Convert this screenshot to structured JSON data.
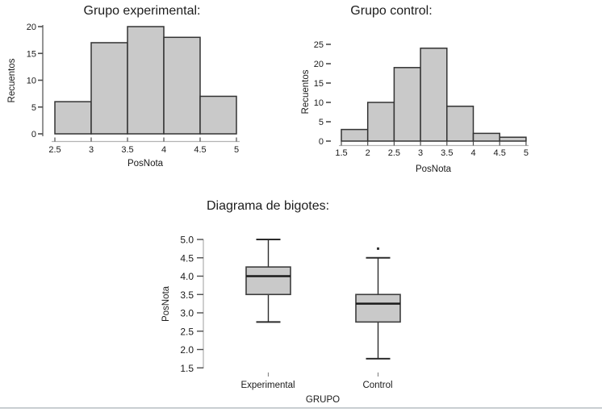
{
  "page": {
    "background": "#ffffff",
    "bottom_rule_color": "#c9ced2",
    "bar_fill": "#c9c9c9",
    "bar_stroke": "#333333",
    "axis_line_color": "#b3b3b3",
    "tick_color": "#4d4d4d",
    "text_color": "#1a1a1a"
  },
  "chart_data": [
    {
      "type": "bar",
      "subtype": "histogram",
      "title": "Grupo experimental:",
      "xlabel": "PosNota",
      "ylabel": "Recuentos",
      "bin_edges": [
        2.5,
        3,
        3.5,
        4,
        4.5,
        5
      ],
      "counts": [
        6,
        17,
        20,
        18,
        7
      ],
      "x_ticks": [
        2.5,
        3,
        3.5,
        4,
        4.5,
        5
      ],
      "x_tick_labels": [
        "2.5",
        "3",
        "3.5",
        "4",
        "4.5",
        "5"
      ],
      "y_ticks": [
        0,
        5,
        10,
        15,
        20
      ],
      "y_tick_labels": [
        "0",
        "5",
        "10",
        "15",
        "20"
      ],
      "xlim": [
        2.5,
        5
      ],
      "ylim": [
        0,
        20
      ],
      "grid": false,
      "legend": false
    },
    {
      "type": "bar",
      "subtype": "histogram",
      "title": "Grupo control:",
      "xlabel": "PosNota",
      "ylabel": "Recuentos",
      "bin_edges": [
        1.5,
        2,
        2.5,
        3,
        3.5,
        4,
        4.5,
        5
      ],
      "counts": [
        3,
        10,
        19,
        24,
        9,
        2,
        1
      ],
      "x_ticks": [
        1.5,
        2,
        2.5,
        3,
        3.5,
        4,
        4.5,
        5
      ],
      "x_tick_labels": [
        "1.5",
        "2",
        "2.5",
        "3",
        "3.5",
        "4",
        "4.5",
        "5"
      ],
      "y_ticks": [
        0,
        5,
        10,
        15,
        20,
        25
      ],
      "y_tick_labels": [
        "0",
        "5",
        "10",
        "15",
        "20",
        "25"
      ],
      "xlim": [
        1.5,
        5
      ],
      "ylim": [
        0,
        25
      ],
      "grid": false,
      "legend": false
    },
    {
      "type": "boxplot",
      "title": "Diagrama de bigotes:",
      "xlabel": "GRUPO",
      "ylabel": "PosNota",
      "y_ticks": [
        1.5,
        2.0,
        2.5,
        3.0,
        3.5,
        4.0,
        4.5,
        5.0
      ],
      "y_tick_labels": [
        "1.5",
        "2.0",
        "2.5",
        "3.0",
        "3.5",
        "4.0",
        "4.5",
        "5.0"
      ],
      "ylim": [
        1.5,
        5.0
      ],
      "grid": false,
      "legend": false,
      "groups": [
        {
          "label": "Experimental",
          "min": 2.75,
          "q1": 3.5,
          "median": 4.0,
          "q3": 4.25,
          "max": 5.0,
          "outliers": []
        },
        {
          "label": "Control",
          "min": 1.75,
          "q1": 2.75,
          "median": 3.25,
          "q3": 3.5,
          "max": 4.5,
          "outliers": [
            4.75
          ]
        }
      ]
    }
  ]
}
